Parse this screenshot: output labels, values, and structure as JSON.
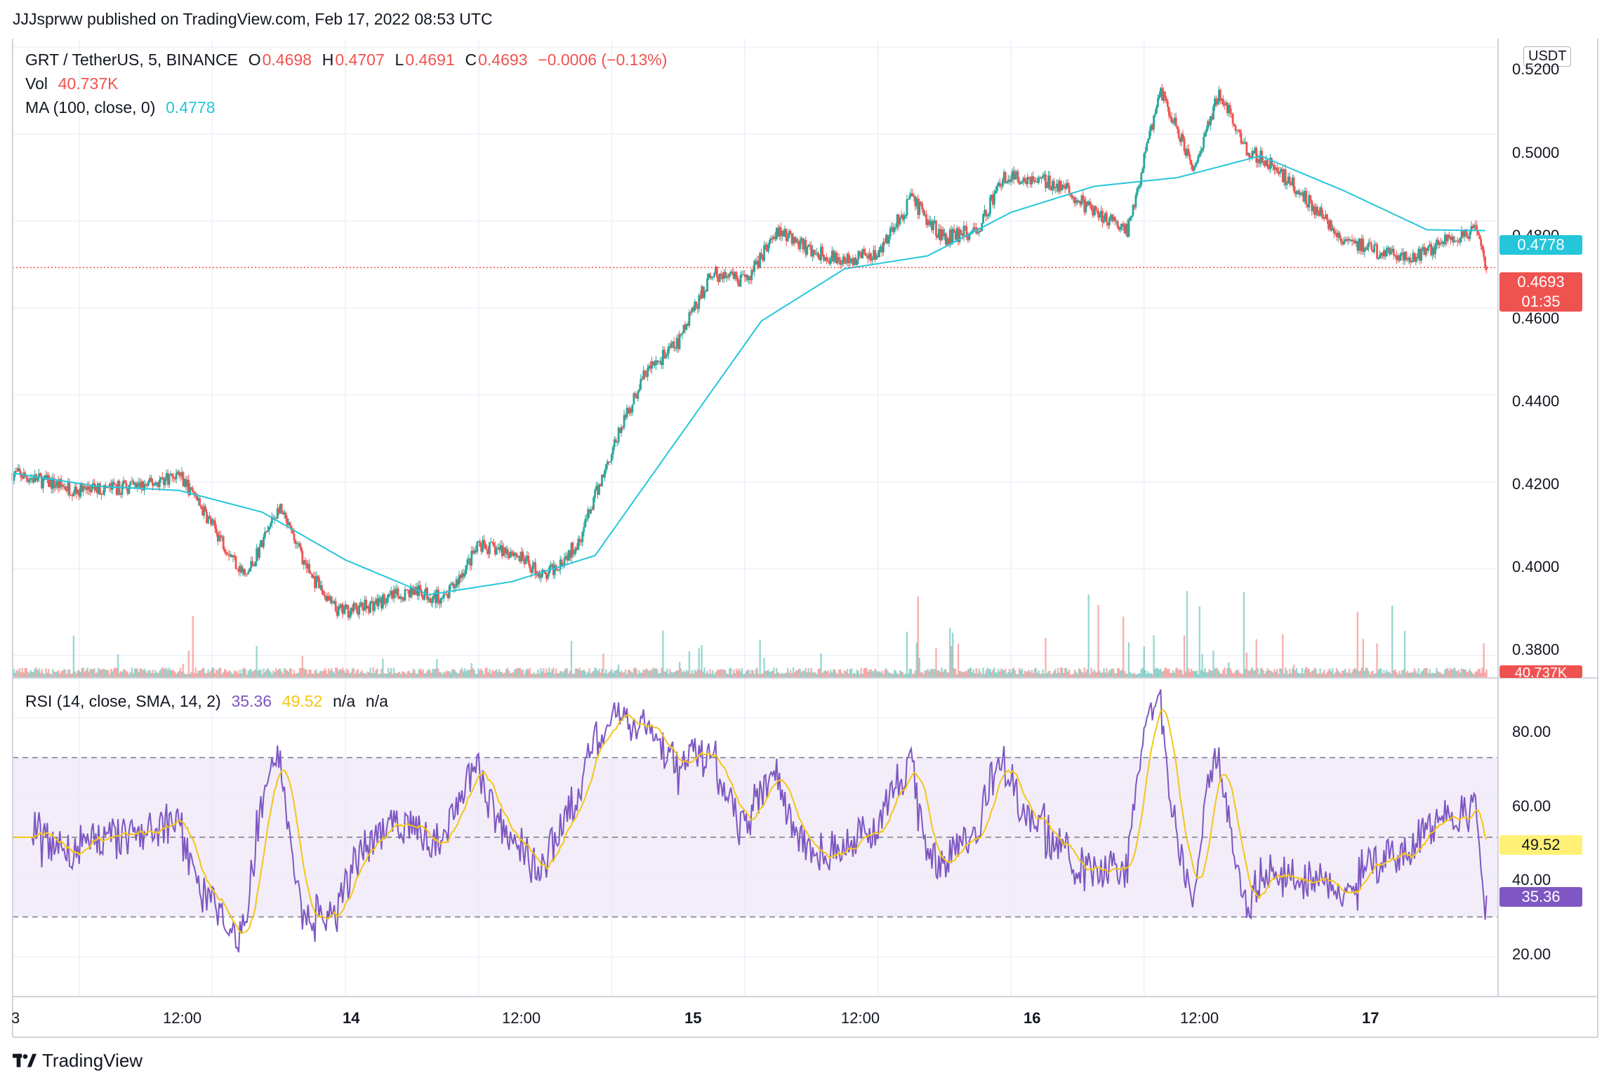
{
  "header": {
    "published": "JJJsprww published on TradingView.com, Feb 17, 2022 08:53 UTC"
  },
  "legend": {
    "symbol": "GRT / TetherUS, 5, BINANCE",
    "o_label": "O",
    "o_value": "0.4698",
    "h_label": "H",
    "h_value": "0.4707",
    "l_label": "L",
    "l_value": "0.4691",
    "c_label": "C",
    "c_value": "0.4693",
    "change": "−0.0006 (−0.13%)",
    "vol_label": "Vol",
    "vol_value": "40.737K",
    "ma_label": "MA (100, close, 0)",
    "ma_value": "0.4778",
    "rsi_label": "RSI (14, close, SMA, 14, 2)",
    "rsi_value": "35.36",
    "rsi_sma_value": "49.52",
    "rsi_na1": "n/a",
    "rsi_na2": "n/a"
  },
  "price_axis": {
    "currency": "USDT",
    "ticks": [
      "0.5200",
      "0.5000",
      "0.4800",
      "0.4600",
      "0.4400",
      "0.4200",
      "0.4000",
      "0.3800"
    ],
    "last_price_tag": "0.4693",
    "countdown_tag": "01:35",
    "ma_tag": "0.4778",
    "volume_tag": "40.737K"
  },
  "rsi_axis": {
    "ticks": [
      "80.00",
      "60.00",
      "40.00",
      "20.00"
    ],
    "sma_tag": "49.52",
    "rsi_tag": "35.36"
  },
  "time_axis": {
    "ticks": [
      "3",
      "12:00",
      "14",
      "12:00",
      "15",
      "12:00",
      "16",
      "12:00",
      "17"
    ]
  },
  "footer": {
    "brand": "TradingView"
  },
  "colors": {
    "up": "#26a69a",
    "down": "#ef5350",
    "ma": "#26c6da",
    "rsi": "#7e57c2",
    "rsi_sma": "#f5c518",
    "rsi_band": "#ede7f6"
  },
  "chart_data": {
    "type": "line",
    "title": "GRT / TetherUS, 5, BINANCE",
    "price_ylim": [
      0.375,
      0.522
    ],
    "price_anchors": {
      "x_hours_from_feb13_0800": [
        0,
        4,
        8,
        10,
        12,
        14,
        16,
        18,
        19.5,
        21,
        24,
        26,
        28,
        30,
        32,
        34,
        36,
        38,
        40,
        42,
        44,
        46,
        48,
        50,
        52,
        54,
        56,
        58,
        59.5,
        61,
        63,
        65,
        67,
        69,
        71,
        72.5,
        74,
        76,
        78,
        80,
        82,
        84,
        86,
        88,
        88.6
      ],
      "close": [
        0.422,
        0.418,
        0.419,
        0.422,
        0.41,
        0.398,
        0.414,
        0.398,
        0.39,
        0.391,
        0.395,
        0.393,
        0.405,
        0.404,
        0.398,
        0.406,
        0.427,
        0.445,
        0.452,
        0.468,
        0.466,
        0.478,
        0.473,
        0.471,
        0.473,
        0.485,
        0.476,
        0.478,
        0.49,
        0.49,
        0.488,
        0.482,
        0.478,
        0.51,
        0.492,
        0.51,
        0.497,
        0.492,
        0.484,
        0.476,
        0.473,
        0.471,
        0.475,
        0.478,
        0.4693
      ]
    },
    "ma100": {
      "x_hours_from_feb13_0800": [
        0,
        5,
        10,
        15,
        20,
        25,
        30,
        35,
        40,
        45,
        50,
        55,
        60,
        65,
        70,
        75,
        80,
        85,
        88.6
      ],
      "values": [
        0.422,
        0.419,
        0.418,
        0.413,
        0.402,
        0.394,
        0.397,
        0.403,
        0.43,
        0.457,
        0.469,
        0.472,
        0.482,
        0.488,
        0.49,
        0.495,
        0.487,
        0.478,
        0.4778
      ]
    },
    "rsi_ylim": [
      10,
      90
    ],
    "rsi_levels": {
      "upper": 70,
      "middle": 50,
      "lower": 30
    },
    "rsi_last": 35.36,
    "rsi_sma_last": 49.52,
    "last_price": 0.4693
  }
}
